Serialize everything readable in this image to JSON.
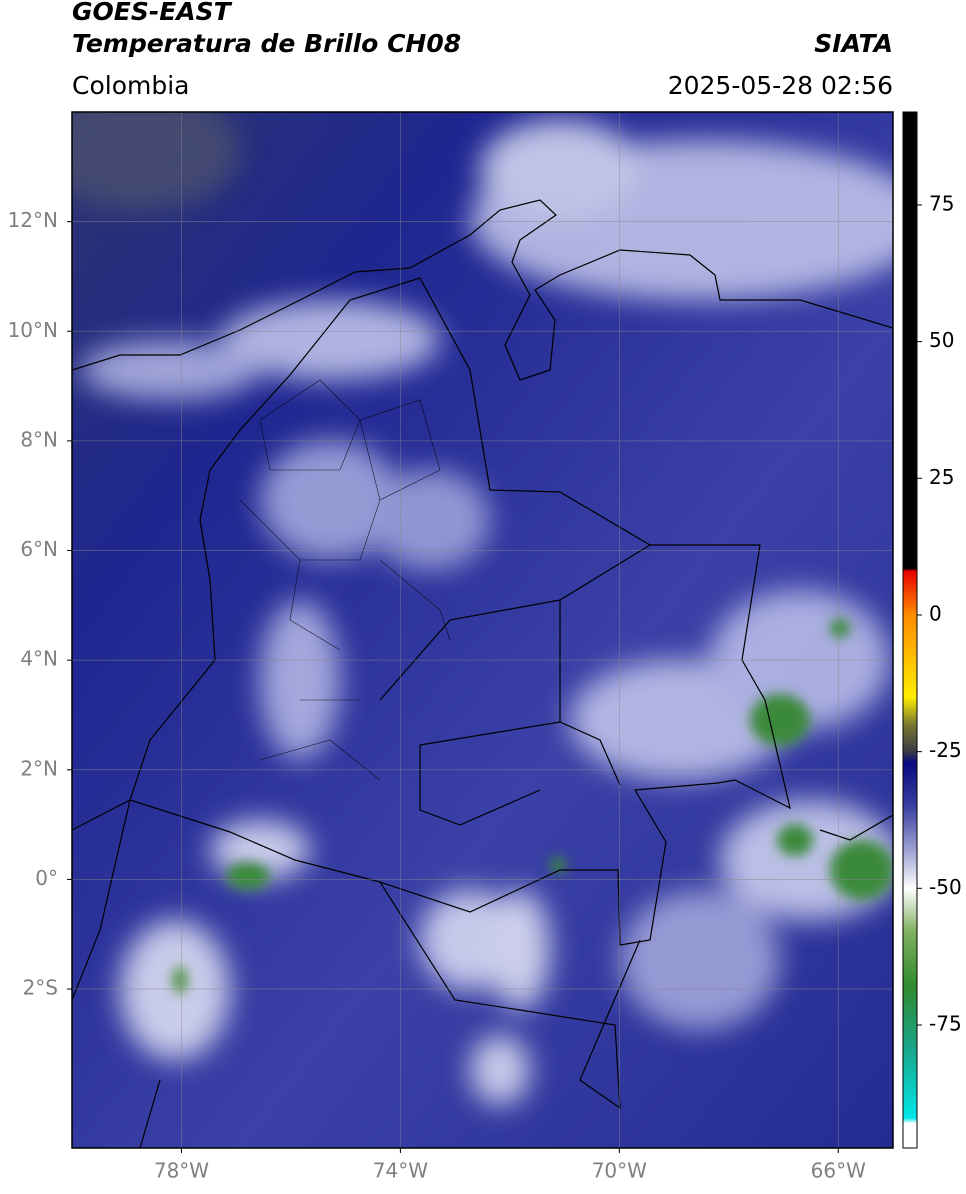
{
  "header": {
    "title_line1": "GOES-EAST",
    "title_line2": "Temperatura de Brillo CH08",
    "source": "SIATA",
    "region": "Colombia",
    "timestamp": "2025-05-28 02:56"
  },
  "map": {
    "xlim": [
      -80,
      -65
    ],
    "ylim": [
      -4.9,
      14
    ],
    "lon_ticks": [
      {
        "value": -78,
        "label": "78°W"
      },
      {
        "value": -74,
        "label": "74°W"
      },
      {
        "value": -70,
        "label": "70°W"
      },
      {
        "value": -66,
        "label": "66°W"
      }
    ],
    "lat_ticks": [
      {
        "value": 12,
        "label": "12°N"
      },
      {
        "value": 10,
        "label": "10°N"
      },
      {
        "value": 8,
        "label": "8°N"
      },
      {
        "value": 6,
        "label": "6°N"
      },
      {
        "value": 4,
        "label": "4°N"
      },
      {
        "value": 2,
        "label": "2°N"
      },
      {
        "value": 0,
        "label": "0°"
      },
      {
        "value": -2,
        "label": "2°S"
      }
    ]
  },
  "colorbar": {
    "lim": [
      -97.5,
      92
    ],
    "ticks": [
      75,
      50,
      25,
      0,
      -25,
      -50,
      -75
    ],
    "colormap": [
      {
        "value": 92,
        "color": "#000000"
      },
      {
        "value": 8.5,
        "color": "#000000"
      },
      {
        "value": 8,
        "color": "#e80000"
      },
      {
        "value": 0,
        "color": "#ff8c00"
      },
      {
        "value": -15,
        "color": "#ffee00"
      },
      {
        "value": -20,
        "color": "#7a7a30"
      },
      {
        "value": -25,
        "color": "#3a3a44"
      },
      {
        "value": -27,
        "color": "#0a0a80"
      },
      {
        "value": -35,
        "color": "#3a3fa0"
      },
      {
        "value": -45,
        "color": "#b8bce0"
      },
      {
        "value": -50,
        "color": "#ffffff"
      },
      {
        "value": -58,
        "color": "#7fb060"
      },
      {
        "value": -68,
        "color": "#2e8a2e"
      },
      {
        "value": -80,
        "color": "#18a890"
      },
      {
        "value": -92,
        "color": "#00e8e8"
      },
      {
        "value": -93,
        "color": "#ffffff"
      },
      {
        "value": -97.5,
        "color": "#ffffff"
      }
    ]
  }
}
